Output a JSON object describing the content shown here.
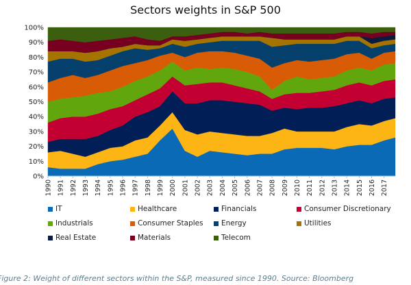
{
  "chart_data": {
    "type": "area",
    "stacked": true,
    "normalized_percent": true,
    "title": "Sectors weights in S&P 500",
    "xlabel": "",
    "ylabel": "",
    "ylim": [
      0,
      100
    ],
    "yticks": [
      "0%",
      "10%",
      "20%",
      "30%",
      "40%",
      "50%",
      "60%",
      "70%",
      "80%",
      "90%",
      "100%"
    ],
    "xticks": [
      "1990",
      "1991",
      "1992",
      "1993",
      "1994",
      "1995",
      "1996",
      "1997",
      "1998",
      "1999",
      "2000",
      "2001",
      "2002",
      "2003",
      "2004",
      "2005",
      "2006",
      "2007",
      "2008",
      "2009",
      "2010",
      "2011",
      "2012",
      "2013",
      "2014",
      "2015",
      "2016",
      "2017"
    ],
    "grid": false,
    "legend_position": "bottom",
    "x": [
      1990,
      1991,
      1992,
      1993,
      1994,
      1995,
      1996,
      1997,
      1998,
      1999,
      2000,
      2001,
      2002,
      2003,
      2004,
      2005,
      2006,
      2007,
      2008,
      2009,
      2010,
      2011,
      2012,
      2013,
      2014,
      2015,
      2016,
      2017,
      2017.9
    ],
    "series": [
      {
        "name": "IT",
        "color": "#0a6ab6",
        "values": [
          6,
          5,
          5,
          5,
          8,
          10,
          11,
          13,
          15,
          24,
          32,
          17,
          13,
          17,
          16,
          15,
          14,
          15,
          15,
          18,
          19,
          19,
          19,
          18,
          20,
          21,
          21,
          24,
          26
        ]
      },
      {
        "name": "Healthcare",
        "color": "#fdb515",
        "values": [
          10,
          12,
          10,
          8,
          8,
          9,
          9,
          11,
          11,
          10,
          11,
          14,
          15,
          13,
          13,
          13,
          13,
          12,
          14,
          14,
          11,
          11,
          11,
          12,
          13,
          14,
          13,
          13,
          13
        ]
      },
      {
        "name": "Financials",
        "color": "#021e56",
        "values": [
          7,
          8,
          10,
          12,
          11,
          12,
          14,
          16,
          17,
          13,
          14,
          18,
          21,
          21,
          22,
          22,
          22,
          21,
          15,
          14,
          15,
          16,
          16,
          17,
          16,
          16,
          15,
          15,
          14
        ]
      },
      {
        "name": "Consumer Discretionary",
        "color": "#c20031",
        "values": [
          13,
          14,
          15,
          15,
          15,
          14,
          13,
          11,
          12,
          12,
          10,
          12,
          13,
          12,
          12,
          11,
          10,
          9,
          8,
          9,
          11,
          10,
          11,
          11,
          12,
          12,
          12,
          12,
          12
        ]
      },
      {
        "name": "Industrials",
        "color": "#62a60e",
        "values": [
          14,
          13,
          13,
          14,
          14,
          12,
          13,
          13,
          12,
          12,
          10,
          10,
          11,
          9,
          10,
          11,
          11,
          10,
          6,
          9,
          11,
          9,
          9,
          9,
          10,
          10,
          10,
          11,
          11
        ]
      },
      {
        "name": "Consumer Staples",
        "color": "#d85c05",
        "values": [
          13,
          14,
          15,
          12,
          12,
          14,
          14,
          12,
          11,
          10,
          6,
          9,
          10,
          12,
          11,
          11,
          11,
          12,
          15,
          12,
          11,
          12,
          12,
          12,
          11,
          10,
          8,
          8,
          8
        ]
      },
      {
        "name": "Energy",
        "color": "#053f6b",
        "values": [
          14,
          13,
          11,
          11,
          10,
          10,
          10,
          10,
          7,
          5,
          6,
          7,
          6,
          6,
          7,
          8,
          10,
          12,
          14,
          12,
          11,
          12,
          11,
          10,
          9,
          8,
          7,
          5,
          5
        ]
      },
      {
        "name": "Utilities",
        "color": "#a57400",
        "values": [
          7,
          5,
          5,
          6,
          6,
          5,
          3,
          3,
          3,
          2,
          3,
          4,
          3,
          3,
          3,
          3,
          3,
          3,
          6,
          4,
          3,
          3,
          3,
          3,
          3,
          3,
          3,
          3,
          3
        ]
      },
      {
        "name": "Real Estate",
        "color": "#0c1a3e",
        "values": [
          0,
          0,
          0,
          0,
          0,
          0,
          0,
          0,
          0,
          0,
          0,
          0,
          0,
          0,
          0,
          0,
          0,
          0,
          0,
          0,
          0,
          0,
          0,
          0,
          0,
          0,
          4,
          3,
          3
        ]
      },
      {
        "name": "Materials",
        "color": "#770020",
        "values": [
          7,
          8,
          7,
          7,
          7,
          6,
          6,
          5,
          4,
          3,
          2,
          3,
          3,
          3,
          3,
          3,
          2,
          3,
          3,
          4,
          4,
          4,
          4,
          4,
          3,
          3,
          3,
          3,
          2
        ]
      },
      {
        "name": "Telecom",
        "color": "#3b5f0f",
        "values": [
          9,
          8,
          9,
          10,
          9,
          8,
          7,
          6,
          8,
          9,
          6,
          6,
          5,
          4,
          3,
          3,
          4,
          3,
          4,
          4,
          4,
          4,
          4,
          4,
          3,
          3,
          4,
          3,
          3
        ]
      }
    ]
  },
  "caption": "Figure 2: Weight of different sectors within the S&P, measured since 1990. Source: Bloomberg"
}
